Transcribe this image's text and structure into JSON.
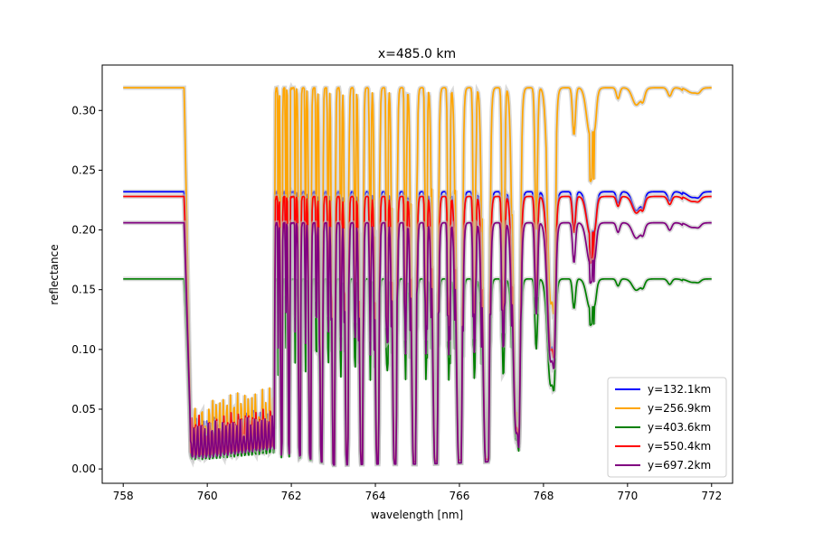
{
  "chart_data": {
    "type": "line",
    "title": "x=485.0 km",
    "xlabel": "wavelength [nm]",
    "ylabel": "reflectance",
    "xlim": [
      757.5,
      772.5
    ],
    "ylim": [
      -0.012,
      0.338
    ],
    "x_ticks": [
      758,
      760,
      762,
      764,
      766,
      768,
      770,
      772
    ],
    "x_tick_labels": [
      "758",
      "760",
      "762",
      "764",
      "766",
      "768",
      "770",
      "772"
    ],
    "y_ticks": [
      0.0,
      0.05,
      0.1,
      0.15,
      0.2,
      0.25,
      0.3
    ],
    "y_tick_labels": [
      "0.00",
      "0.05",
      "0.10",
      "0.15",
      "0.20",
      "0.25",
      "0.30"
    ],
    "grid": false,
    "legend_position": "lower-right",
    "uncertainty_band_color": "#bbbbbb",
    "series": [
      {
        "name": "y=132.1km",
        "color": "#0000ff",
        "continuum": 0.232,
        "shallow_min": [
          [
            760.0,
            0.005
          ],
          [
            762.0,
            0.215
          ],
          [
            763.0,
            0.01
          ],
          [
            764.0,
            0.06
          ],
          [
            765.0,
            0.02
          ],
          [
            766.0,
            0.05
          ],
          [
            767.0,
            0.09
          ],
          [
            768.0,
            0.17
          ],
          [
            770.0,
            0.2
          ]
        ]
      },
      {
        "name": "y=256.9km",
        "color": "#ffa500",
        "continuum": 0.319,
        "shallow_min": [
          [
            760.0,
            0.02
          ],
          [
            762.0,
            0.3
          ],
          [
            763.0,
            0.06
          ],
          [
            764.0,
            0.1
          ],
          [
            765.0,
            0.1
          ],
          [
            766.0,
            0.14
          ],
          [
            767.0,
            0.15
          ],
          [
            768.0,
            0.24
          ],
          [
            770.0,
            0.29
          ]
        ]
      },
      {
        "name": "y=403.6km",
        "color": "#008000",
        "continuum": 0.159,
        "shallow_min": [
          [
            760.0,
            0.005
          ],
          [
            762.0,
            0.146
          ],
          [
            763.0,
            0.01
          ],
          [
            764.0,
            0.03
          ],
          [
            765.0,
            0.02
          ],
          [
            766.0,
            0.04
          ],
          [
            767.0,
            0.07
          ],
          [
            768.0,
            0.11
          ],
          [
            770.0,
            0.14
          ]
        ]
      },
      {
        "name": "y=550.4km",
        "color": "#ff0000",
        "continuum": 0.228,
        "shallow_min": [
          [
            760.0,
            0.04
          ],
          [
            762.0,
            0.215
          ],
          [
            763.0,
            0.03
          ],
          [
            764.0,
            0.07
          ],
          [
            765.0,
            0.06
          ],
          [
            766.0,
            0.09
          ],
          [
            767.0,
            0.11
          ],
          [
            768.0,
            0.17
          ],
          [
            770.0,
            0.2
          ]
        ]
      },
      {
        "name": "y=697.2km",
        "color": "#800080",
        "continuum": 0.206,
        "shallow_min": [
          [
            760.0,
            0.003
          ],
          [
            762.0,
            0.195
          ],
          [
            763.0,
            0.005
          ],
          [
            764.0,
            0.02
          ],
          [
            765.0,
            0.02
          ],
          [
            766.0,
            0.04
          ],
          [
            767.0,
            0.07
          ],
          [
            768.0,
            0.14
          ],
          [
            770.0,
            0.18
          ]
        ]
      }
    ]
  }
}
